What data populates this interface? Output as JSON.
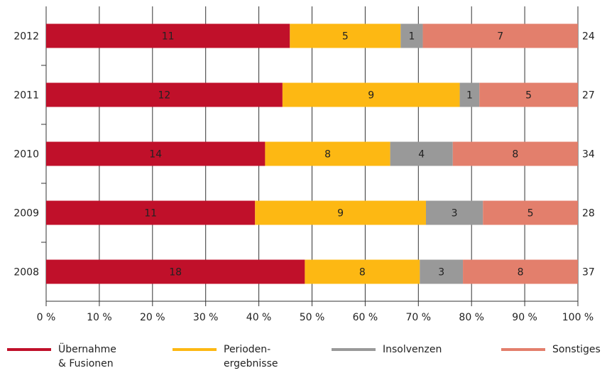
{
  "chart_data": {
    "type": "bar",
    "orientation": "horizontal",
    "stacked": true,
    "normalized": true,
    "categories": [
      "2012",
      "2011",
      "2010",
      "2009",
      "2008"
    ],
    "totals": [
      24,
      27,
      34,
      28,
      37
    ],
    "series": [
      {
        "name": "Übernahme\n& Fusionen",
        "color": "#c0102a",
        "values": [
          11,
          12,
          14,
          11,
          18
        ]
      },
      {
        "name": "Perioden-\nergebnisse",
        "color": "#fdb813",
        "values": [
          5,
          9,
          8,
          9,
          8
        ]
      },
      {
        "name": "Insolvenzen",
        "color": "#999999",
        "values": [
          1,
          1,
          4,
          3,
          3
        ]
      },
      {
        "name": "Sonstiges",
        "color": "#e37f6c",
        "values": [
          7,
          5,
          8,
          5,
          8
        ]
      }
    ],
    "xticks": [
      "0 %",
      "10 %",
      "20 %",
      "30 %",
      "40 %",
      "50 %",
      "60 %",
      "70 %",
      "80 %",
      "90 %",
      "100 %"
    ],
    "xlim": [
      0,
      100
    ],
    "grid": true,
    "legend_position": "bottom"
  }
}
